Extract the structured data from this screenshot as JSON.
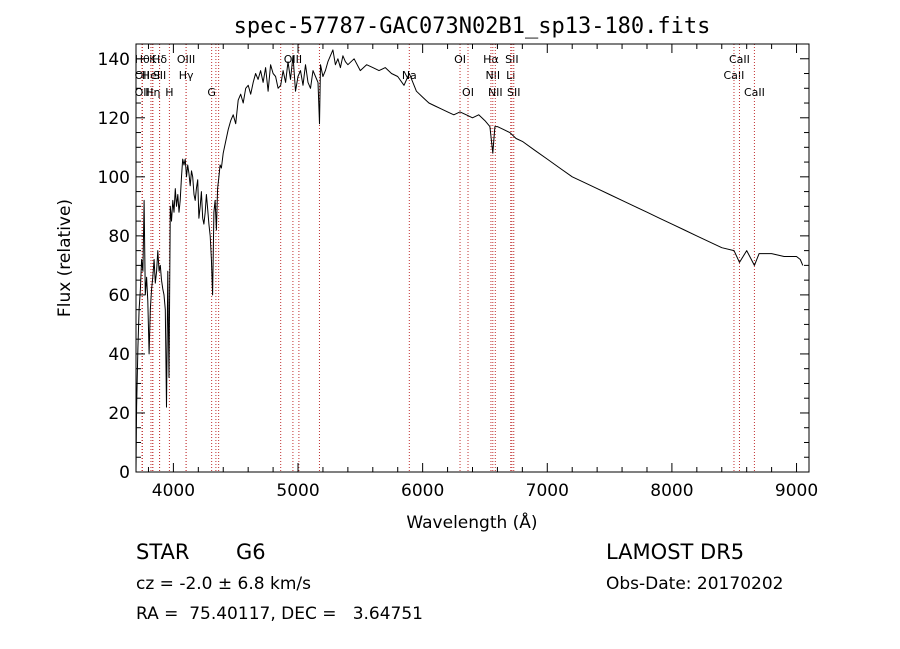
{
  "chart_data": {
    "type": "line",
    "title": "spec-57787-GAC073N02B1_sp13-180.fits",
    "xlabel": "Wavelength (Å)",
    "ylabel": "Flux (relative)",
    "xlim": [
      3700,
      9100
    ],
    "ylim": [
      0,
      145
    ],
    "xticks": [
      4000,
      5000,
      6000,
      7000,
      8000,
      9000
    ],
    "yticks": [
      0,
      20,
      40,
      60,
      80,
      100,
      120,
      140
    ],
    "grid": false,
    "series_color": "#000000",
    "line_color": "#c03030",
    "series": [
      {
        "x": [
          3700,
          3705,
          3715,
          3725,
          3735,
          3745,
          3755,
          3765,
          3775,
          3785,
          3795,
          3805,
          3815,
          3825,
          3835,
          3845,
          3855,
          3865,
          3875,
          3885,
          3895,
          3905,
          3915,
          3925,
          3935,
          3945,
          3955,
          3965,
          3975,
          3985,
          3995,
          4005,
          4015,
          4025,
          4035,
          4045,
          4055,
          4065,
          4075,
          4085,
          4095,
          4105,
          4115,
          4125,
          4135,
          4145,
          4155,
          4165,
          4175,
          4185,
          4195,
          4205,
          4215,
          4225,
          4235,
          4245,
          4255,
          4265,
          4275,
          4285,
          4295,
          4305,
          4315,
          4325,
          4335,
          4345,
          4355,
          4365,
          4375,
          4385,
          4400,
          4420,
          4440,
          4460,
          4480,
          4500,
          4520,
          4540,
          4560,
          4580,
          4600,
          4620,
          4640,
          4660,
          4680,
          4700,
          4720,
          4740,
          4760,
          4780,
          4800,
          4820,
          4840,
          4861,
          4880,
          4900,
          4920,
          4940,
          4960,
          4980,
          5000,
          5020,
          5040,
          5060,
          5080,
          5100,
          5120,
          5140,
          5160,
          5172,
          5180,
          5200,
          5220,
          5240,
          5260,
          5280,
          5300,
          5320,
          5340,
          5360,
          5380,
          5400,
          5450,
          5500,
          5550,
          5600,
          5650,
          5700,
          5750,
          5800,
          5850,
          5893,
          5950,
          6000,
          6050,
          6100,
          6150,
          6200,
          6250,
          6300,
          6350,
          6400,
          6450,
          6500,
          6540,
          6563,
          6580,
          6600,
          6650,
          6700,
          6750,
          6800,
          6900,
          7000,
          7100,
          7200,
          7300,
          7400,
          7500,
          7600,
          7700,
          7800,
          7900,
          8000,
          8100,
          8200,
          8300,
          8400,
          8498,
          8542,
          8600,
          8662,
          8700,
          8800,
          8900,
          9000,
          9030,
          9050
        ],
        "values": [
          0,
          22,
          42,
          55,
          62,
          72,
          68,
          92,
          60,
          66,
          58,
          40,
          55,
          62,
          66,
          72,
          64,
          68,
          75,
          68,
          70,
          65,
          62,
          60,
          55,
          22,
          68,
          32,
          90,
          85,
          92,
          88,
          96,
          90,
          94,
          88,
          92,
          100,
          106,
          104,
          106,
          100,
          104,
          101,
          97,
          102,
          100,
          94,
          92,
          96,
          99,
          86,
          90,
          95,
          86,
          84,
          88,
          94,
          89,
          84,
          80,
          72,
          60,
          88,
          92,
          82,
          96,
          100,
          104,
          103,
          108,
          112,
          116,
          119,
          121,
          118,
          126,
          128,
          125,
          130,
          131,
          128,
          132,
          135,
          133,
          136,
          132,
          137,
          129,
          138,
          135,
          134,
          130,
          131,
          136,
          132,
          139,
          133,
          141,
          129,
          134,
          136,
          131,
          138,
          132,
          130,
          136,
          134,
          132,
          118,
          138,
          134,
          136,
          139,
          141,
          143,
          138,
          140,
          137,
          141,
          139,
          138,
          140,
          136,
          138,
          137,
          136,
          137,
          135,
          134,
          131,
          135,
          129,
          127,
          125,
          124,
          123,
          122,
          121,
          122,
          121,
          120,
          121,
          119,
          117,
          108,
          117,
          117,
          116,
          115,
          113,
          112,
          109,
          106,
          103,
          100,
          98,
          96,
          94,
          92,
          90,
          88,
          86,
          84,
          82,
          80,
          78,
          76,
          75,
          71,
          75,
          70,
          74,
          74,
          73,
          73,
          72,
          70
        ]
      }
    ],
    "lines": [
      {
        "x": 3750,
        "label": "Hθ",
        "row": 1
      },
      {
        "x": 3750,
        "label": "OII",
        "row": 2
      },
      {
        "x": 3750,
        "label": "OII",
        "row": 3
      },
      {
        "x": 3834,
        "label": "K",
        "row": 1
      },
      {
        "x": 3820,
        "label": "HeI",
        "row": 2
      },
      {
        "x": 3835,
        "label": "Hη",
        "row": 3
      },
      {
        "x": 3889,
        "label": "Hδ",
        "row": 1
      },
      {
        "x": 3889,
        "label": "SII",
        "row": 2
      },
      {
        "x": 3968,
        "label": "H",
        "row": 3
      },
      {
        "x": 4102,
        "label": "OIII",
        "row": 1
      },
      {
        "x": 4102,
        "label": "Hγ",
        "row": 2
      },
      {
        "x": 4307,
        "label": "G",
        "row": 3
      },
      {
        "x": 4341,
        "label": "",
        "row": 0
      },
      {
        "x": 4363,
        "label": "",
        "row": 0
      },
      {
        "x": 4861,
        "label": "",
        "row": 0
      },
      {
        "x": 4959,
        "label": "OIII",
        "row": 1
      },
      {
        "x": 5007,
        "label": "",
        "row": 0
      },
      {
        "x": 5172,
        "label": "",
        "row": 0
      },
      {
        "x": 5893,
        "label": "Na",
        "row": 2
      },
      {
        "x": 6300,
        "label": "OI",
        "row": 1
      },
      {
        "x": 6364,
        "label": "OI",
        "row": 3
      },
      {
        "x": 6548,
        "label": "Hα",
        "row": 1
      },
      {
        "x": 6563,
        "label": "NII",
        "row": 2
      },
      {
        "x": 6583,
        "label": "NII",
        "row": 3
      },
      {
        "x": 6707,
        "label": "Li",
        "row": 2
      },
      {
        "x": 6716,
        "label": "SII",
        "row": 1
      },
      {
        "x": 6731,
        "label": "SII",
        "row": 3
      },
      {
        "x": 8498,
        "label": "CaII",
        "row": 2
      },
      {
        "x": 8542,
        "label": "CaII",
        "row": 1
      },
      {
        "x": 8662,
        "label": "CaII",
        "row": 3
      }
    ]
  },
  "info": {
    "object_class": "STAR",
    "subclass": "G6",
    "survey": "LAMOST DR5",
    "redshift": "cz = -2.0 ± 6.8 km/s",
    "obs_date": "Obs-Date: 20170202",
    "coords": "RA =  75.40117, DEC =   3.64751"
  }
}
